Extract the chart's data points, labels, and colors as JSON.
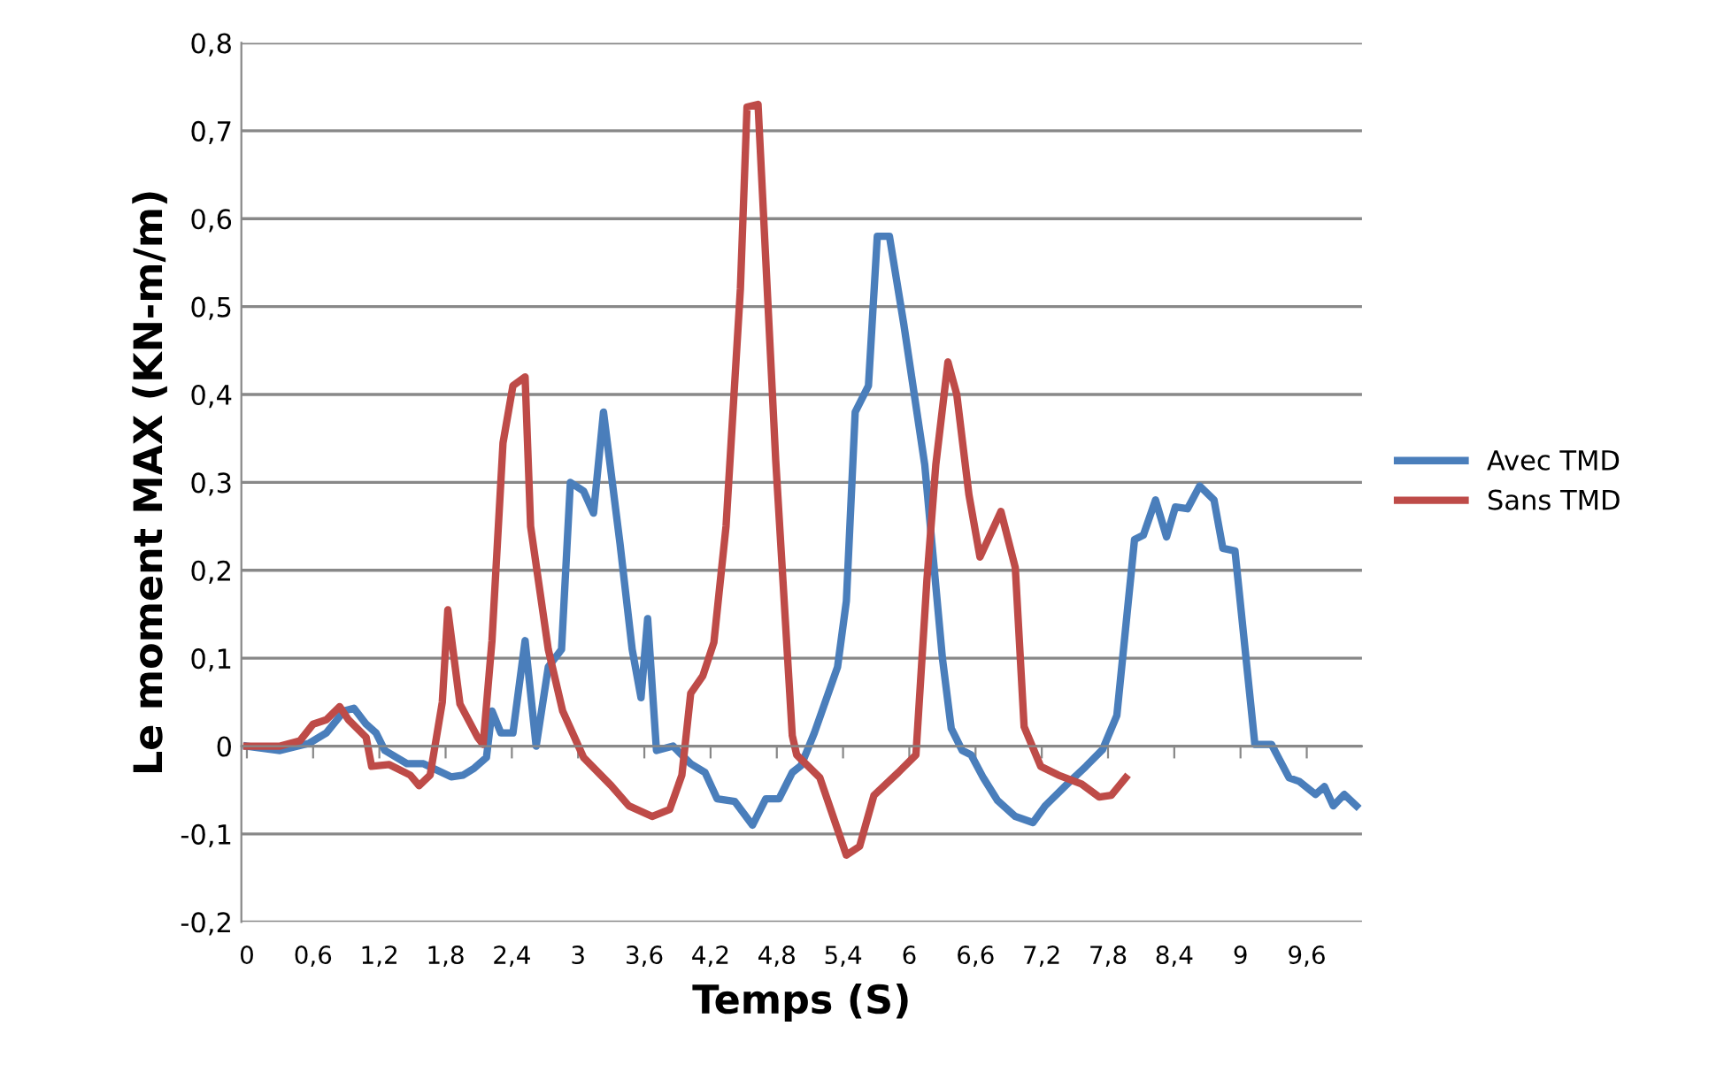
{
  "chart_data": {
    "type": "line",
    "xlabel": "Temps (S)",
    "ylabel": "Le moment MAX (KN-m/m)",
    "xlim": [
      -0.05,
      10.1
    ],
    "ylim": [
      -0.2,
      0.8
    ],
    "xticks": [
      0,
      {
        "value": 0.6,
        "label": "0,6"
      },
      {
        "value": 1.2,
        "label": "1,2"
      },
      {
        "value": 1.8,
        "label": "1,8"
      },
      {
        "value": 2.4,
        "label": "2,4"
      },
      3,
      {
        "value": 3.6,
        "label": "3,6"
      },
      {
        "value": 4.2,
        "label": "4,2"
      },
      {
        "value": 4.8,
        "label": "4,8"
      },
      {
        "value": 5.4,
        "label": "5,4"
      },
      6,
      {
        "value": 6.6,
        "label": "6,6"
      },
      {
        "value": 7.2,
        "label": "7,2"
      },
      {
        "value": 7.8,
        "label": "7,8"
      },
      {
        "value": 8.4,
        "label": "8,4"
      },
      9,
      {
        "value": 9.6,
        "label": "9,6"
      }
    ],
    "yticks": [
      {
        "value": -0.2,
        "label": "-0,2"
      },
      {
        "value": -0.1,
        "label": "-0,1"
      },
      0,
      {
        "value": 0.1,
        "label": "0,1"
      },
      {
        "value": 0.2,
        "label": "0,2"
      },
      {
        "value": 0.3,
        "label": "0,3"
      },
      {
        "value": 0.4,
        "label": "0,4"
      },
      {
        "value": 0.5,
        "label": "0,5"
      },
      {
        "value": 0.6,
        "label": "0,6"
      },
      {
        "value": 0.7,
        "label": "0,7"
      },
      {
        "value": 0.8,
        "label": "0,8"
      }
    ],
    "grid": "y",
    "legend": "right",
    "marker": "none",
    "line_style": "solid",
    "series": [
      {
        "name": "Avec TMD",
        "color": "#4a7ebb",
        "x": [
          0,
          0.3,
          0.56,
          0.72,
          0.88,
          0.97,
          1.08,
          1.17,
          1.25,
          1.45,
          1.6,
          1.85,
          1.96,
          2.06,
          2.17,
          2.22,
          2.3,
          2.41,
          2.52,
          2.62,
          2.73,
          2.85,
          2.93,
          3.05,
          3.14,
          3.23,
          3.38,
          3.49,
          3.57,
          3.63,
          3.71,
          3.86,
          4.02,
          4.15,
          4.26,
          4.42,
          4.58,
          4.7,
          4.82,
          4.94,
          5.02,
          5.14,
          5.35,
          5.43,
          5.51,
          5.63,
          5.71,
          5.82,
          5.95,
          6.14,
          6.3,
          6.38,
          6.48,
          6.56,
          6.67,
          6.8,
          6.96,
          7.12,
          7.23,
          7.44,
          7.6,
          7.75,
          7.88,
          8.04,
          8.12,
          8.23,
          8.33,
          8.41,
          8.52,
          8.63,
          8.76,
          8.84,
          8.95,
          9.13,
          9.28,
          9.44,
          9.53,
          9.68,
          9.76,
          9.84,
          9.94,
          10.05
        ],
        "values": [
          0,
          -0.005,
          0.003,
          0.015,
          0.04,
          0.043,
          0.025,
          0.015,
          -0.005,
          -0.02,
          -0.02,
          -0.035,
          -0.033,
          -0.025,
          -0.013,
          0.04,
          0.015,
          0.015,
          0.12,
          0,
          0.09,
          0.11,
          0.3,
          0.29,
          0.265,
          0.38,
          0.23,
          0.11,
          0.055,
          0.145,
          -0.005,
          0,
          -0.02,
          -0.03,
          -0.06,
          -0.063,
          -0.09,
          -0.06,
          -0.06,
          -0.03,
          -0.022,
          0.015,
          0.09,
          0.165,
          0.38,
          0.41,
          0.58,
          0.58,
          0.48,
          0.32,
          0.1,
          0.02,
          -0.005,
          -0.01,
          -0.036,
          -0.062,
          -0.08,
          -0.087,
          -0.068,
          -0.042,
          -0.023,
          -0.004,
          0.035,
          0.235,
          0.24,
          0.28,
          0.238,
          0.272,
          0.27,
          0.296,
          0.28,
          0.225,
          0.222,
          0.002,
          0.002,
          -0.036,
          -0.04,
          -0.055,
          -0.046,
          -0.068,
          -0.055,
          -0.068
        ]
      },
      {
        "name": "Sans TMD",
        "color": "#be4b48",
        "x": [
          0,
          0.3,
          0.48,
          0.6,
          0.72,
          0.84,
          0.92,
          1.08,
          1.13,
          1.29,
          1.48,
          1.56,
          1.66,
          1.77,
          1.82,
          1.93,
          2.09,
          2.14,
          2.22,
          2.32,
          2.41,
          2.52,
          2.57,
          2.73,
          2.86,
          3.05,
          3.3,
          3.46,
          3.67,
          3.83,
          3.94,
          4.02,
          4.13,
          4.23,
          4.34,
          4.47,
          4.53,
          4.63,
          4.79,
          4.94,
          4.98,
          5.19,
          5.43,
          5.55,
          5.68,
          5.9,
          6.06,
          6.16,
          6.24,
          6.35,
          6.43,
          6.54,
          6.64,
          6.83,
          6.96,
          7.04,
          7.19,
          7.35,
          7.56,
          7.72,
          7.83,
          7.96
        ],
        "values": [
          0,
          0,
          0.006,
          0.025,
          0.03,
          0.045,
          0.03,
          0.01,
          -0.023,
          -0.021,
          -0.033,
          -0.045,
          -0.033,
          0.05,
          0.155,
          0.048,
          0.01,
          0.002,
          0.12,
          0.345,
          0.41,
          0.42,
          0.25,
          0.11,
          0.04,
          -0.013,
          -0.045,
          -0.068,
          -0.08,
          -0.072,
          -0.033,
          0.06,
          0.08,
          0.118,
          0.25,
          0.52,
          0.727,
          0.73,
          0.325,
          0.012,
          -0.01,
          -0.036,
          -0.124,
          -0.114,
          -0.056,
          -0.03,
          -0.01,
          0.19,
          0.32,
          0.437,
          0.4,
          0.286,
          0.215,
          0.267,
          0.203,
          0.022,
          -0.023,
          -0.033,
          -0.043,
          -0.058,
          -0.056,
          -0.036
        ]
      }
    ]
  }
}
